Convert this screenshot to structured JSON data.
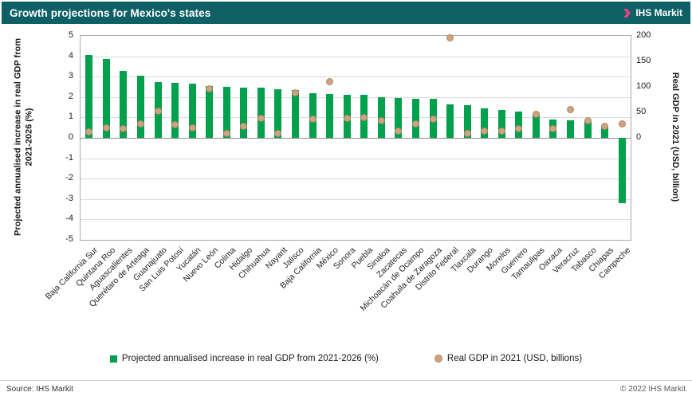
{
  "header": {
    "title": "Growth projections for Mexico's states",
    "brand": "IHS Markit"
  },
  "legend": {
    "bars": "Projected annualised increase in real GDP from 2021-2026 (%)",
    "dots": "Real GDP in 2021 (USD, billions)"
  },
  "footer": {
    "source": "Source: IHS Markit",
    "copyright": "© 2022  IHS Markit"
  },
  "colors": {
    "bar": "#00A04C",
    "dot": "#CDA383",
    "dot_border": "#B08A63",
    "header_bg": "#0E5F66",
    "grid": "#DCDCDC",
    "zero": "#8C8C8C",
    "plot_border": "#ABABAB"
  },
  "chart_data": {
    "type": "bar",
    "title": "Growth projections for Mexico's states",
    "categories": [
      "Baja California Sur",
      "Quintana Roo",
      "Aguascalientes",
      "Querétaro de Arteaga",
      "Guanajuato",
      "San Luis Potosí",
      "Yucatán",
      "Nuevo León",
      "Colima",
      "Hidalgo",
      "Chihuahua",
      "Nayarit",
      "Jalisco",
      "Baja California",
      "México",
      "Sonora",
      "Puebla",
      "Sinaloa",
      "Zacatecas",
      "Michoacán de Ocampo",
      "Coahuila de Zaragoza",
      "Distrito Federal",
      "Tlaxcala",
      "Durango",
      "Morelos",
      "Guerrero",
      "Tamaulipas",
      "Oaxaca",
      "Veracruz",
      "Tabasco",
      "Chiapas",
      "Campeche"
    ],
    "series": [
      {
        "name": "Projected annualised increase in real GDP from 2021-2026 (%)",
        "type": "bar",
        "axis": "left",
        "values": [
          4.05,
          3.85,
          3.3,
          3.05,
          2.75,
          2.7,
          2.65,
          2.55,
          2.5,
          2.45,
          2.45,
          2.4,
          2.35,
          2.2,
          2.15,
          2.1,
          2.1,
          2.0,
          1.95,
          1.9,
          1.9,
          1.65,
          1.6,
          1.45,
          1.35,
          1.3,
          1.15,
          0.9,
          0.85,
          0.85,
          0.6,
          -3.2
        ]
      },
      {
        "name": "Real GDP in 2021 (USD, billions)",
        "type": "scatter",
        "axis": "right",
        "values": [
          12,
          20,
          18,
          28,
          52,
          26,
          20,
          96,
          8,
          22,
          38,
          8,
          88,
          36,
          110,
          38,
          40,
          33,
          14,
          28,
          36,
          196,
          8,
          13,
          13,
          18,
          46,
          18,
          55,
          34,
          22,
          28
        ]
      }
    ],
    "left_axis": {
      "label": "Projected annualised increase in real GDP from 2021-2026 (%)",
      "min": -5,
      "max": 5,
      "ticks": [
        5,
        4,
        3,
        2,
        1,
        0,
        -1,
        -2,
        -3,
        -4,
        -5
      ]
    },
    "right_axis": {
      "label": "Real GDP in 2021 (USD, billion)",
      "min": 0,
      "max": 200,
      "ticks": [
        200,
        150,
        100,
        50,
        0
      ],
      "zero_aligned_with_left_zero": true
    },
    "grid": true,
    "legend_position": "bottom"
  }
}
